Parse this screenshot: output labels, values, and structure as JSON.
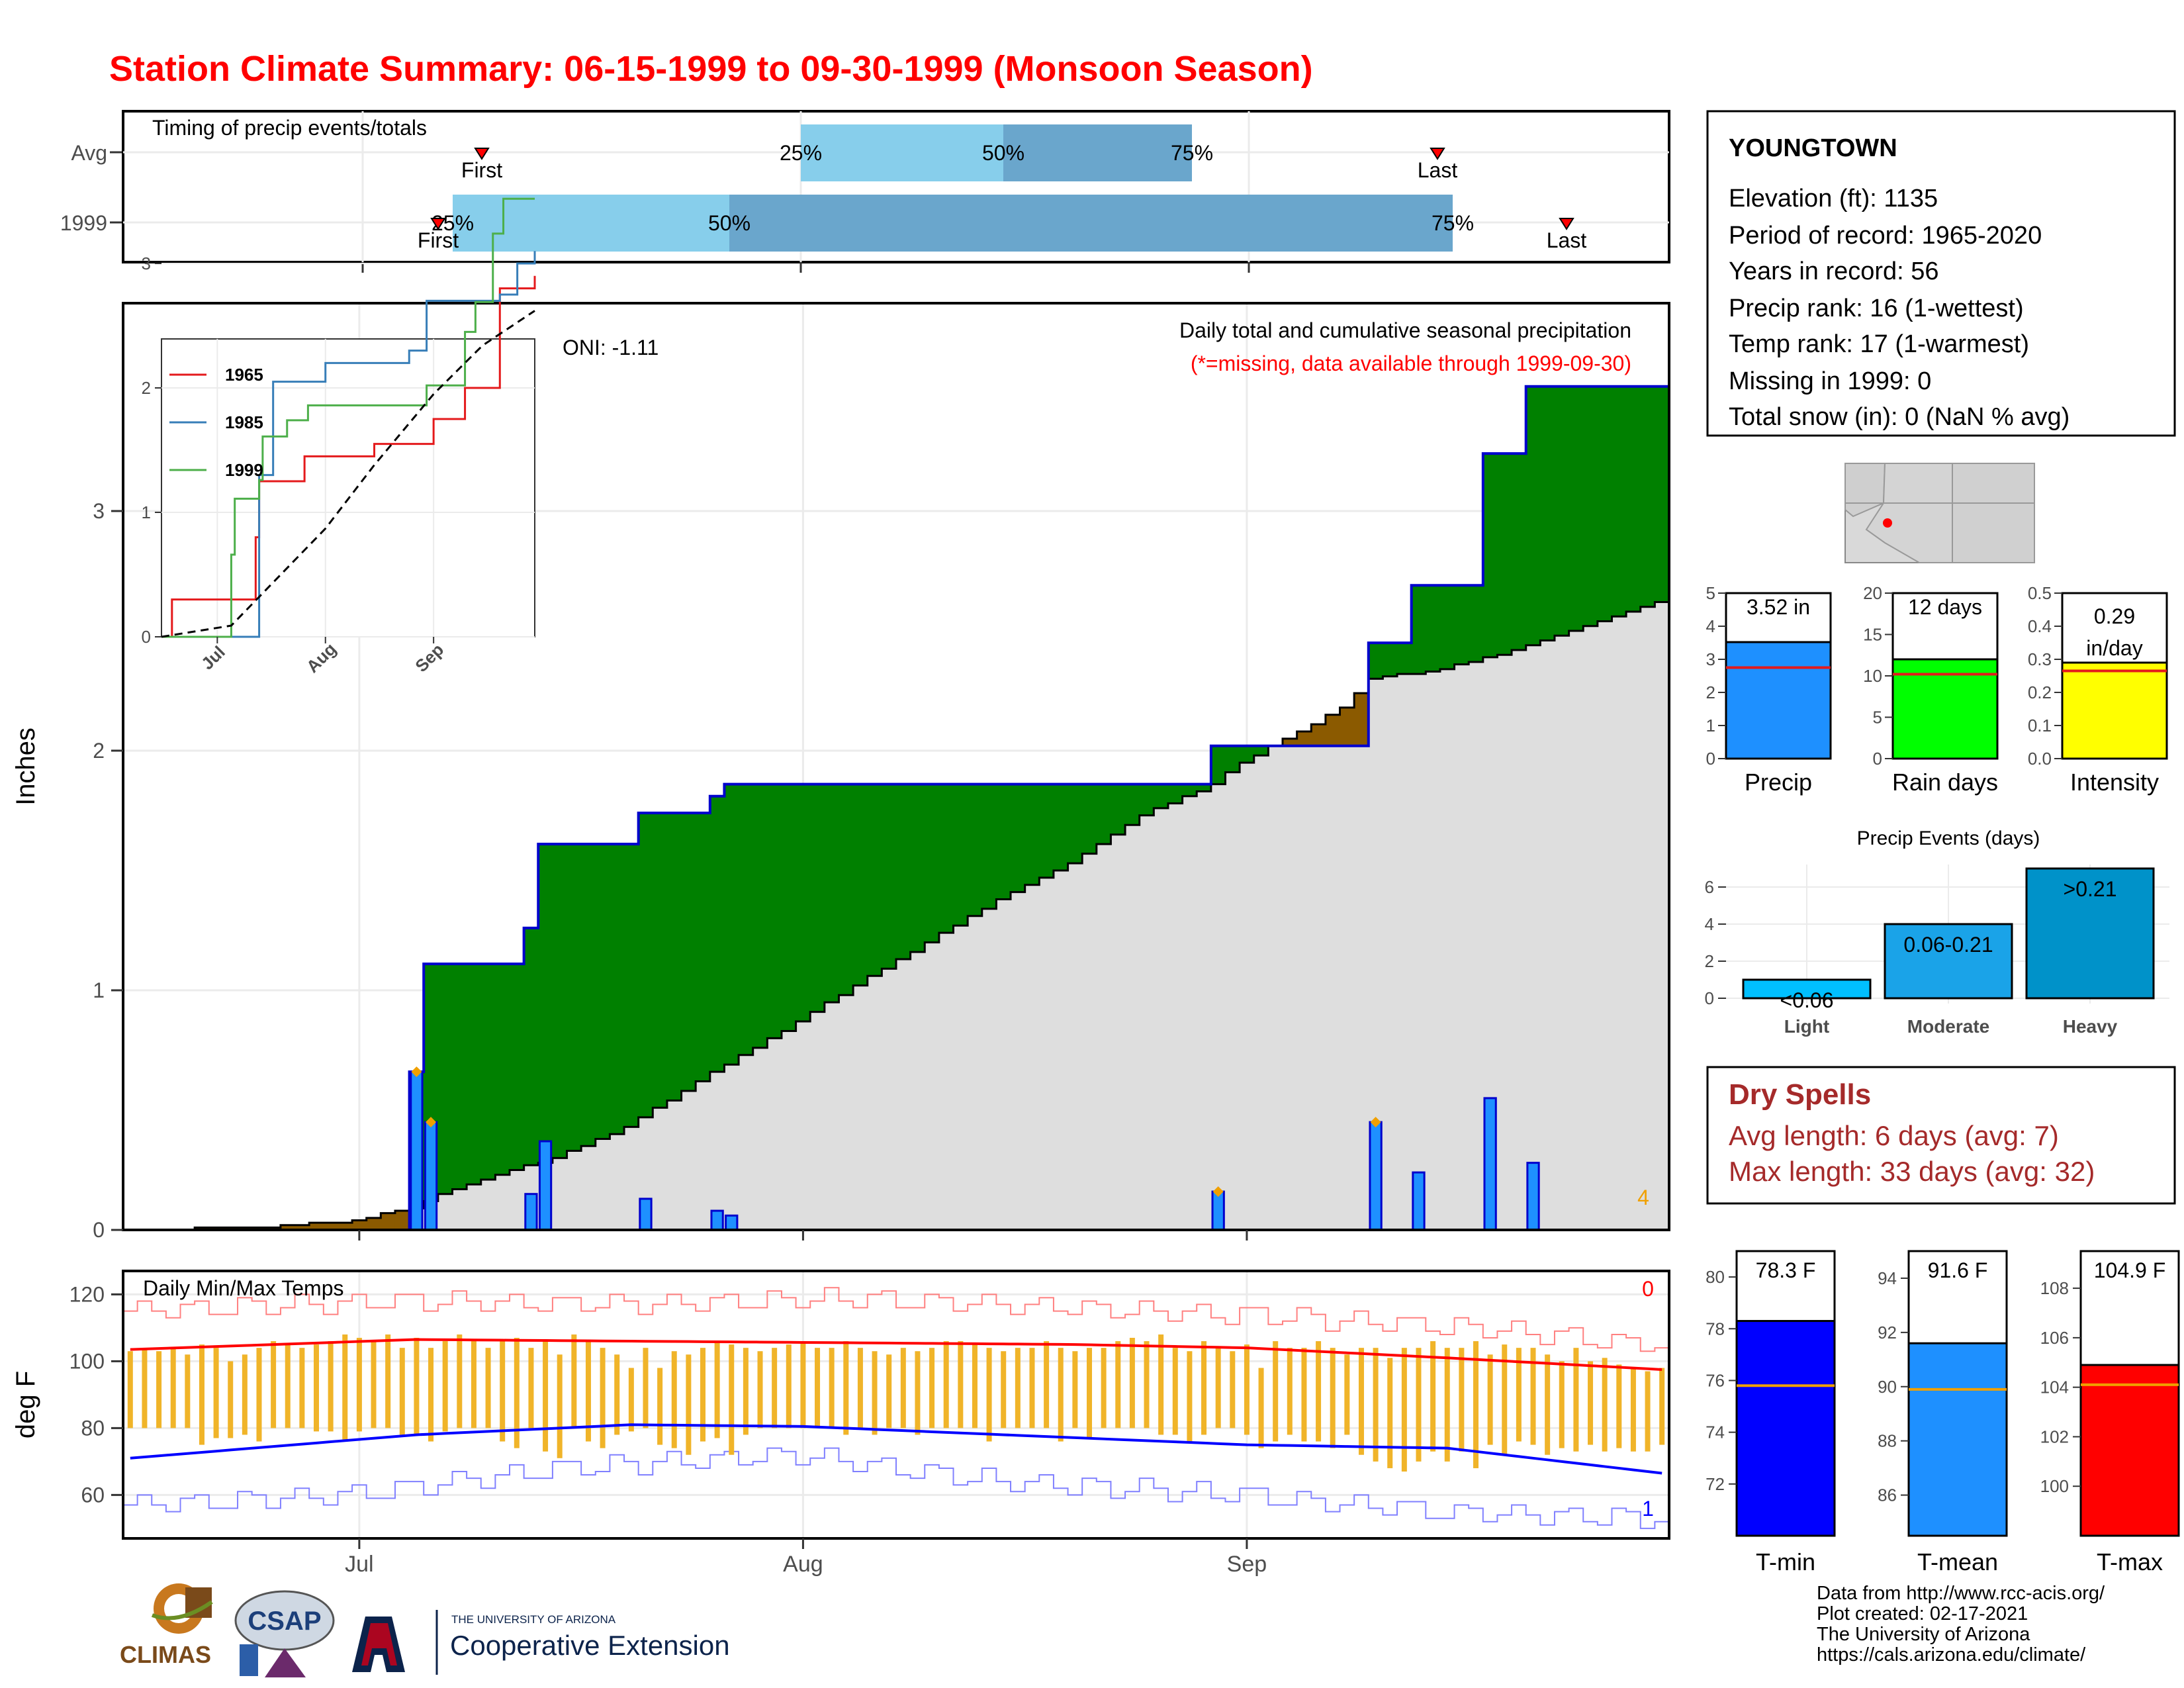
{
  "title": "Station Climate Summary: 06-15-1999 to 09-30-1999 (Monsoon Season)",
  "colors": {
    "title": "#ff0000",
    "green": "#008000",
    "brown": "#8b5a00",
    "blue_bar": "#1e90ff",
    "temp_bar": "#f0b429",
    "pct_light": "#87ceeb",
    "pct_dark": "#6aa6cc"
  },
  "timing": {
    "title": "Timing of precip events/totals",
    "row_labels": [
      "Avg",
      "1999"
    ],
    "avg": {
      "first_date": "1999-06-24",
      "p25": "1999-08-01",
      "p50": "1999-08-15",
      "p75": "1999-08-28",
      "last_date": "1999-09-12"
    },
    "y1999": {
      "first_date": "1999-07-06",
      "p25": "1999-07-07",
      "p50": "1999-07-26",
      "p75": "1999-09-14",
      "last_date": "1999-09-23"
    },
    "labels": {
      "first": "First",
      "last": "Last",
      "p25": "25%",
      "p50": "50%",
      "p75": "75%"
    }
  },
  "main": {
    "ylabel": "Inches",
    "header": "Daily total and cumulative seasonal precipitation",
    "missing_note": "(*=missing, data available through 1999-09-30)",
    "oni": "ONI: -1.11",
    "corner_count": "4",
    "x_ticks": [
      "Jul",
      "Aug",
      "Sep"
    ],
    "y_ticks": [
      "0",
      "1",
      "2",
      "3"
    ]
  },
  "inset": {
    "series": [
      {
        "name": "1965",
        "color": "#e41a1c"
      },
      {
        "name": "1985",
        "color": "#377eb8"
      },
      {
        "name": "1999",
        "color": "#4daf4a"
      }
    ],
    "x_ticks": [
      "Jul",
      "Aug",
      "Sep"
    ],
    "y_ticks": [
      "0",
      "1",
      "2",
      "3"
    ]
  },
  "temp": {
    "ylabel": "deg F",
    "title": "Daily Min/Max Temps",
    "count_max": "0",
    "count_min": "1",
    "y_ticks": [
      "60",
      "80",
      "100",
      "120"
    ],
    "x_ticks": [
      "Jul",
      "Aug",
      "Sep"
    ]
  },
  "station": {
    "name": "YOUNGTOWN",
    "lines": [
      "Elevation (ft): 1135",
      "Period of record: 1965-2020",
      "Years in record: 56",
      "Precip rank: 16 (1-wettest)",
      "Temp rank: 17 (1-warmest)",
      "Missing in 1999: 0",
      "Total snow (in): 0 (NaN % avg)"
    ]
  },
  "mini_bars": [
    {
      "label": "Precip",
      "value_text": "3.52 in",
      "value": 3.52,
      "avg": 2.75,
      "ymax": 5,
      "ticks": [
        "0",
        "1",
        "2",
        "3",
        "4",
        "5"
      ],
      "color": "#1e90ff"
    },
    {
      "label": "Rain days",
      "value_text": "12 days",
      "value": 12,
      "avg": 10.2,
      "ymax": 20,
      "ticks": [
        "0",
        "5",
        "10",
        "15",
        "20"
      ],
      "color": "#00ff00"
    },
    {
      "label": "Intensity",
      "value_text": "0.29 in/day",
      "value": 0.29,
      "avg": 0.265,
      "ymax": 0.5,
      "ticks": [
        "0.0",
        "0.1",
        "0.2",
        "0.3",
        "0.4",
        "0.5"
      ],
      "color": "#ffff00"
    }
  ],
  "events": {
    "title": "Precip Events (days)",
    "categories": [
      "Light",
      "Moderate",
      "Heavy"
    ],
    "labels": [
      "<0.06",
      "0.06-0.21",
      ">0.21"
    ],
    "values": [
      1,
      4,
      7
    ],
    "ticks": [
      "0",
      "2",
      "4",
      "6"
    ]
  },
  "dry_spells": {
    "title": "Dry Spells",
    "lines": [
      "Avg length: 6 days (avg: 7)",
      "Max length: 33 days (avg: 32)"
    ]
  },
  "temp_bars": [
    {
      "label": "T-min",
      "value_text": "78.3 F",
      "value": 78.3,
      "avg": 75.8,
      "ymin": 70,
      "ymax": 81,
      "ticks": [
        "72",
        "74",
        "76",
        "78",
        "80"
      ],
      "color": "#0000ff"
    },
    {
      "label": "T-mean",
      "value_text": "91.6 F",
      "value": 91.6,
      "avg": 89.9,
      "ymin": 84.5,
      "ymax": 95,
      "ticks": [
        "86",
        "88",
        "90",
        "92",
        "94"
      ],
      "color": "#1e90ff"
    },
    {
      "label": "T-max",
      "value_text": "104.9 F",
      "value": 104.9,
      "avg": 104.1,
      "ymin": 98,
      "ymax": 109.5,
      "ticks": [
        "100",
        "102",
        "104",
        "106",
        "108"
      ],
      "color": "#ff0000"
    }
  ],
  "footer": {
    "lines": [
      "Data from http://www.rcc-acis.org/",
      "Plot created: 02-17-2021",
      "The University of Arizona",
      "https://cals.arizona.edu/climate/"
    ]
  },
  "logos": {
    "climas": "CLIMAS",
    "csap": "CSAP",
    "ua_small": "THE UNIVERSITY OF ARIZONA",
    "ua_big": "Cooperative Extension"
  },
  "chart_data": [
    {
      "type": "bar",
      "title": "Daily total and cumulative seasonal precipitation",
      "ylabel": "Inches",
      "ylim": [
        0,
        3.85
      ],
      "daily_precip": [
        {
          "x": "1999-07-05",
          "y": 0.66
        },
        {
          "x": "1999-07-06",
          "y": 0.45
        },
        {
          "x": "1999-07-13",
          "y": 0.15
        },
        {
          "x": "1999-07-14",
          "y": 0.37
        },
        {
          "x": "1999-07-21",
          "y": 0.13
        },
        {
          "x": "1999-07-26",
          "y": 0.08
        },
        {
          "x": "1999-07-27",
          "y": 0.06
        },
        {
          "x": "1999-08-30",
          "y": 0.16
        },
        {
          "x": "1999-09-10",
          "y": 0.45
        },
        {
          "x": "1999-09-13",
          "y": 0.24
        },
        {
          "x": "1999-09-18",
          "y": 0.55
        },
        {
          "x": "1999-09-21",
          "y": 0.28
        }
      ],
      "cumulative_1999": [
        {
          "x": "1999-06-15",
          "y": 0
        },
        {
          "x": "1999-07-05",
          "y": 0.66
        },
        {
          "x": "1999-07-06",
          "y": 1.11
        },
        {
          "x": "1999-07-13",
          "y": 1.26
        },
        {
          "x": "1999-07-14",
          "y": 1.61
        },
        {
          "x": "1999-07-21",
          "y": 1.74
        },
        {
          "x": "1999-07-26",
          "y": 1.81
        },
        {
          "x": "1999-07-27",
          "y": 1.86
        },
        {
          "x": "1999-08-30",
          "y": 2.02
        },
        {
          "x": "1999-09-10",
          "y": 2.45
        },
        {
          "x": "1999-09-13",
          "y": 2.69
        },
        {
          "x": "1999-09-18",
          "y": 3.24
        },
        {
          "x": "1999-09-21",
          "y": 3.52
        },
        {
          "x": "1999-09-30",
          "y": 3.52
        }
      ],
      "cumulative_avg": [
        {
          "x": "1999-06-15",
          "y": 0
        },
        {
          "x": "1999-06-25",
          "y": 0.01
        },
        {
          "x": "1999-07-01",
          "y": 0.04
        },
        {
          "x": "1999-07-05",
          "y": 0.09
        },
        {
          "x": "1999-07-07",
          "y": 0.15
        },
        {
          "x": "1999-07-12",
          "y": 0.25
        },
        {
          "x": "1999-07-15",
          "y": 0.3
        },
        {
          "x": "1999-07-20",
          "y": 0.43
        },
        {
          "x": "1999-07-25",
          "y": 0.62
        },
        {
          "x": "1999-08-01",
          "y": 0.87
        },
        {
          "x": "1999-08-05",
          "y": 1.02
        },
        {
          "x": "1999-08-10",
          "y": 1.2
        },
        {
          "x": "1999-08-15",
          "y": 1.38
        },
        {
          "x": "1999-08-20",
          "y": 1.53
        },
        {
          "x": "1999-08-25",
          "y": 1.73
        },
        {
          "x": "1999-08-30",
          "y": 1.86
        },
        {
          "x": "1999-09-01",
          "y": 1.95
        },
        {
          "x": "1999-09-05",
          "y": 2.08
        },
        {
          "x": "1999-09-08",
          "y": 2.18
        },
        {
          "x": "1999-09-10",
          "y": 2.3
        },
        {
          "x": "1999-09-15",
          "y": 2.34
        },
        {
          "x": "1999-09-20",
          "y": 2.42
        },
        {
          "x": "1999-09-25",
          "y": 2.52
        },
        {
          "x": "1999-09-30",
          "y": 2.62
        }
      ],
      "record_markers": [
        "1999-07-05",
        "1999-07-06",
        "1999-08-30",
        "1999-09-10"
      ]
    },
    {
      "type": "line",
      "series": [
        {
          "name": "1965",
          "points": [
            {
              "x": "1999-06-15",
              "y": 0
            },
            {
              "x": "1999-06-18",
              "y": 0.3
            },
            {
              "x": "1999-07-11",
              "y": 0.3
            },
            {
              "x": "1999-07-12",
              "y": 0.8
            },
            {
              "x": "1999-07-13",
              "y": 1.25
            },
            {
              "x": "1999-07-26",
              "y": 1.45
            },
            {
              "x": "1999-08-15",
              "y": 1.55
            },
            {
              "x": "1999-09-01",
              "y": 1.75
            },
            {
              "x": "1999-09-10",
              "y": 2.0
            },
            {
              "x": "1999-09-20",
              "y": 2.8
            },
            {
              "x": "1999-09-30",
              "y": 2.9
            }
          ]
        },
        {
          "name": "1985",
          "points": [
            {
              "x": "1999-06-15",
              "y": 0
            },
            {
              "x": "1999-07-11",
              "y": 0
            },
            {
              "x": "1999-07-13",
              "y": 1.3
            },
            {
              "x": "1999-07-17",
              "y": 2.05
            },
            {
              "x": "1999-08-01",
              "y": 2.2
            },
            {
              "x": "1999-08-25",
              "y": 2.3
            },
            {
              "x": "1999-08-30",
              "y": 2.7
            },
            {
              "x": "1999-09-20",
              "y": 2.75
            },
            {
              "x": "1999-09-25",
              "y": 3.0
            },
            {
              "x": "1999-09-30",
              "y": 3.1
            }
          ]
        },
        {
          "name": "1999",
          "points": [
            {
              "x": "1999-06-15",
              "y": 0
            },
            {
              "x": "1999-07-05",
              "y": 0.66
            },
            {
              "x": "1999-07-06",
              "y": 1.11
            },
            {
              "x": "1999-07-13",
              "y": 1.26
            },
            {
              "x": "1999-07-14",
              "y": 1.61
            },
            {
              "x": "1999-07-21",
              "y": 1.74
            },
            {
              "x": "1999-07-27",
              "y": 1.86
            },
            {
              "x": "1999-08-30",
              "y": 2.02
            },
            {
              "x": "1999-09-10",
              "y": 2.45
            },
            {
              "x": "1999-09-13",
              "y": 2.69
            },
            {
              "x": "1999-09-18",
              "y": 3.24
            },
            {
              "x": "1999-09-21",
              "y": 3.52
            },
            {
              "x": "1999-09-30",
              "y": 3.52
            }
          ]
        },
        {
          "name": "Avg",
          "points": [
            {
              "x": "1999-06-15",
              "y": 0
            },
            {
              "x": "1999-07-05",
              "y": 0.09
            },
            {
              "x": "1999-08-01",
              "y": 0.87
            },
            {
              "x": "1999-08-15",
              "y": 1.38
            },
            {
              "x": "1999-09-01",
              "y": 1.95
            },
            {
              "x": "1999-09-15",
              "y": 2.34
            },
            {
              "x": "1999-09-30",
              "y": 2.62
            }
          ]
        }
      ]
    },
    {
      "type": "line",
      "title": "Daily Min/Max Temps",
      "ylabel": "deg F",
      "ylim": [
        47,
        127
      ],
      "avg_max": [
        {
          "x": "1999-06-15",
          "y": 103.5
        },
        {
          "x": "1999-07-05",
          "y": 106.5
        },
        {
          "x": "1999-07-20",
          "y": 106
        },
        {
          "x": "1999-08-05",
          "y": 105.5
        },
        {
          "x": "1999-08-20",
          "y": 105
        },
        {
          "x": "1999-09-01",
          "y": 104
        },
        {
          "x": "1999-09-15",
          "y": 101
        },
        {
          "x": "1999-09-30",
          "y": 97.5
        }
      ],
      "avg_min": [
        {
          "x": "1999-06-15",
          "y": 71
        },
        {
          "x": "1999-07-05",
          "y": 78
        },
        {
          "x": "1999-07-20",
          "y": 81
        },
        {
          "x": "1999-08-01",
          "y": 80.5
        },
        {
          "x": "1999-08-15",
          "y": 78
        },
        {
          "x": "1999-09-01",
          "y": 75
        },
        {
          "x": "1999-09-15",
          "y": 74
        },
        {
          "x": "1999-09-30",
          "y": 66.5
        }
      ],
      "record_high": [
        {
          "x": "1999-06-15",
          "y": 115
        },
        {
          "x": "1999-07-05",
          "y": 118
        },
        {
          "x": "1999-07-20",
          "y": 117
        },
        {
          "x": "1999-08-05",
          "y": 119
        },
        {
          "x": "1999-08-20",
          "y": 116
        },
        {
          "x": "1999-09-05",
          "y": 113
        },
        {
          "x": "1999-09-20",
          "y": 109
        },
        {
          "x": "1999-09-30",
          "y": 105
        }
      ],
      "record_low": [
        {
          "x": "1999-06-15",
          "y": 57
        },
        {
          "x": "1999-07-01",
          "y": 60
        },
        {
          "x": "1999-07-15",
          "y": 68
        },
        {
          "x": "1999-08-01",
          "y": 72
        },
        {
          "x": "1999-08-15",
          "y": 64
        },
        {
          "x": "1999-09-01",
          "y": 60
        },
        {
          "x": "1999-09-15",
          "y": 55
        },
        {
          "x": "1999-09-30",
          "y": 53
        }
      ],
      "daily_bars_1999": {
        "start": "1999-06-15",
        "max": [
          103,
          104,
          103,
          104,
          102,
          105,
          104,
          100,
          102,
          104,
          106,
          105,
          104,
          105,
          106,
          108,
          107,
          106,
          108,
          104,
          107,
          104,
          106,
          108,
          106,
          104,
          106,
          107,
          104,
          106,
          102,
          108,
          106,
          104,
          102,
          98,
          104,
          98,
          103,
          102,
          104,
          106,
          105,
          104,
          103,
          104,
          105,
          106,
          104,
          104,
          106,
          104,
          103,
          102,
          104,
          103,
          104,
          106,
          106,
          105,
          104,
          103,
          104,
          104,
          106,
          104,
          103,
          104,
          104,
          106,
          107,
          106,
          108,
          104,
          103,
          106,
          104,
          103,
          105,
          98,
          106,
          104,
          104,
          106,
          104,
          102,
          104,
          104,
          101,
          104,
          104,
          106,
          104,
          104,
          106,
          102,
          105,
          104,
          104,
          102,
          100,
          104,
          100,
          101,
          99,
          98,
          97,
          98
        ],
        "min": [
          80,
          80,
          80,
          80,
          80,
          75,
          77,
          77,
          78,
          76,
          80,
          80,
          80,
          79,
          79,
          76,
          79,
          80,
          80,
          78,
          78,
          76,
          79,
          80,
          80,
          80,
          76,
          74,
          80,
          73,
          71,
          80,
          76,
          74,
          78,
          79,
          80,
          75,
          74,
          72,
          76,
          77,
          72,
          78,
          80,
          80,
          80,
          80,
          80,
          80,
          78,
          80,
          78,
          80,
          80,
          78,
          80,
          80,
          80,
          80,
          76,
          80,
          80,
          80,
          80,
          76,
          80,
          77,
          80,
          80,
          80,
          80,
          78,
          78,
          76,
          78,
          80,
          80,
          78,
          74,
          76,
          78,
          76,
          76,
          74,
          78,
          72,
          70,
          68,
          67,
          70,
          73,
          70,
          73,
          68,
          75,
          72,
          76,
          75,
          72,
          74,
          73,
          75,
          73,
          74,
          73,
          73,
          75
        ]
      }
    },
    {
      "type": "bar",
      "title": "Precip Events (days)",
      "categories": [
        "Light",
        "Moderate",
        "Heavy"
      ],
      "values": [
        1,
        4,
        7
      ]
    }
  ]
}
